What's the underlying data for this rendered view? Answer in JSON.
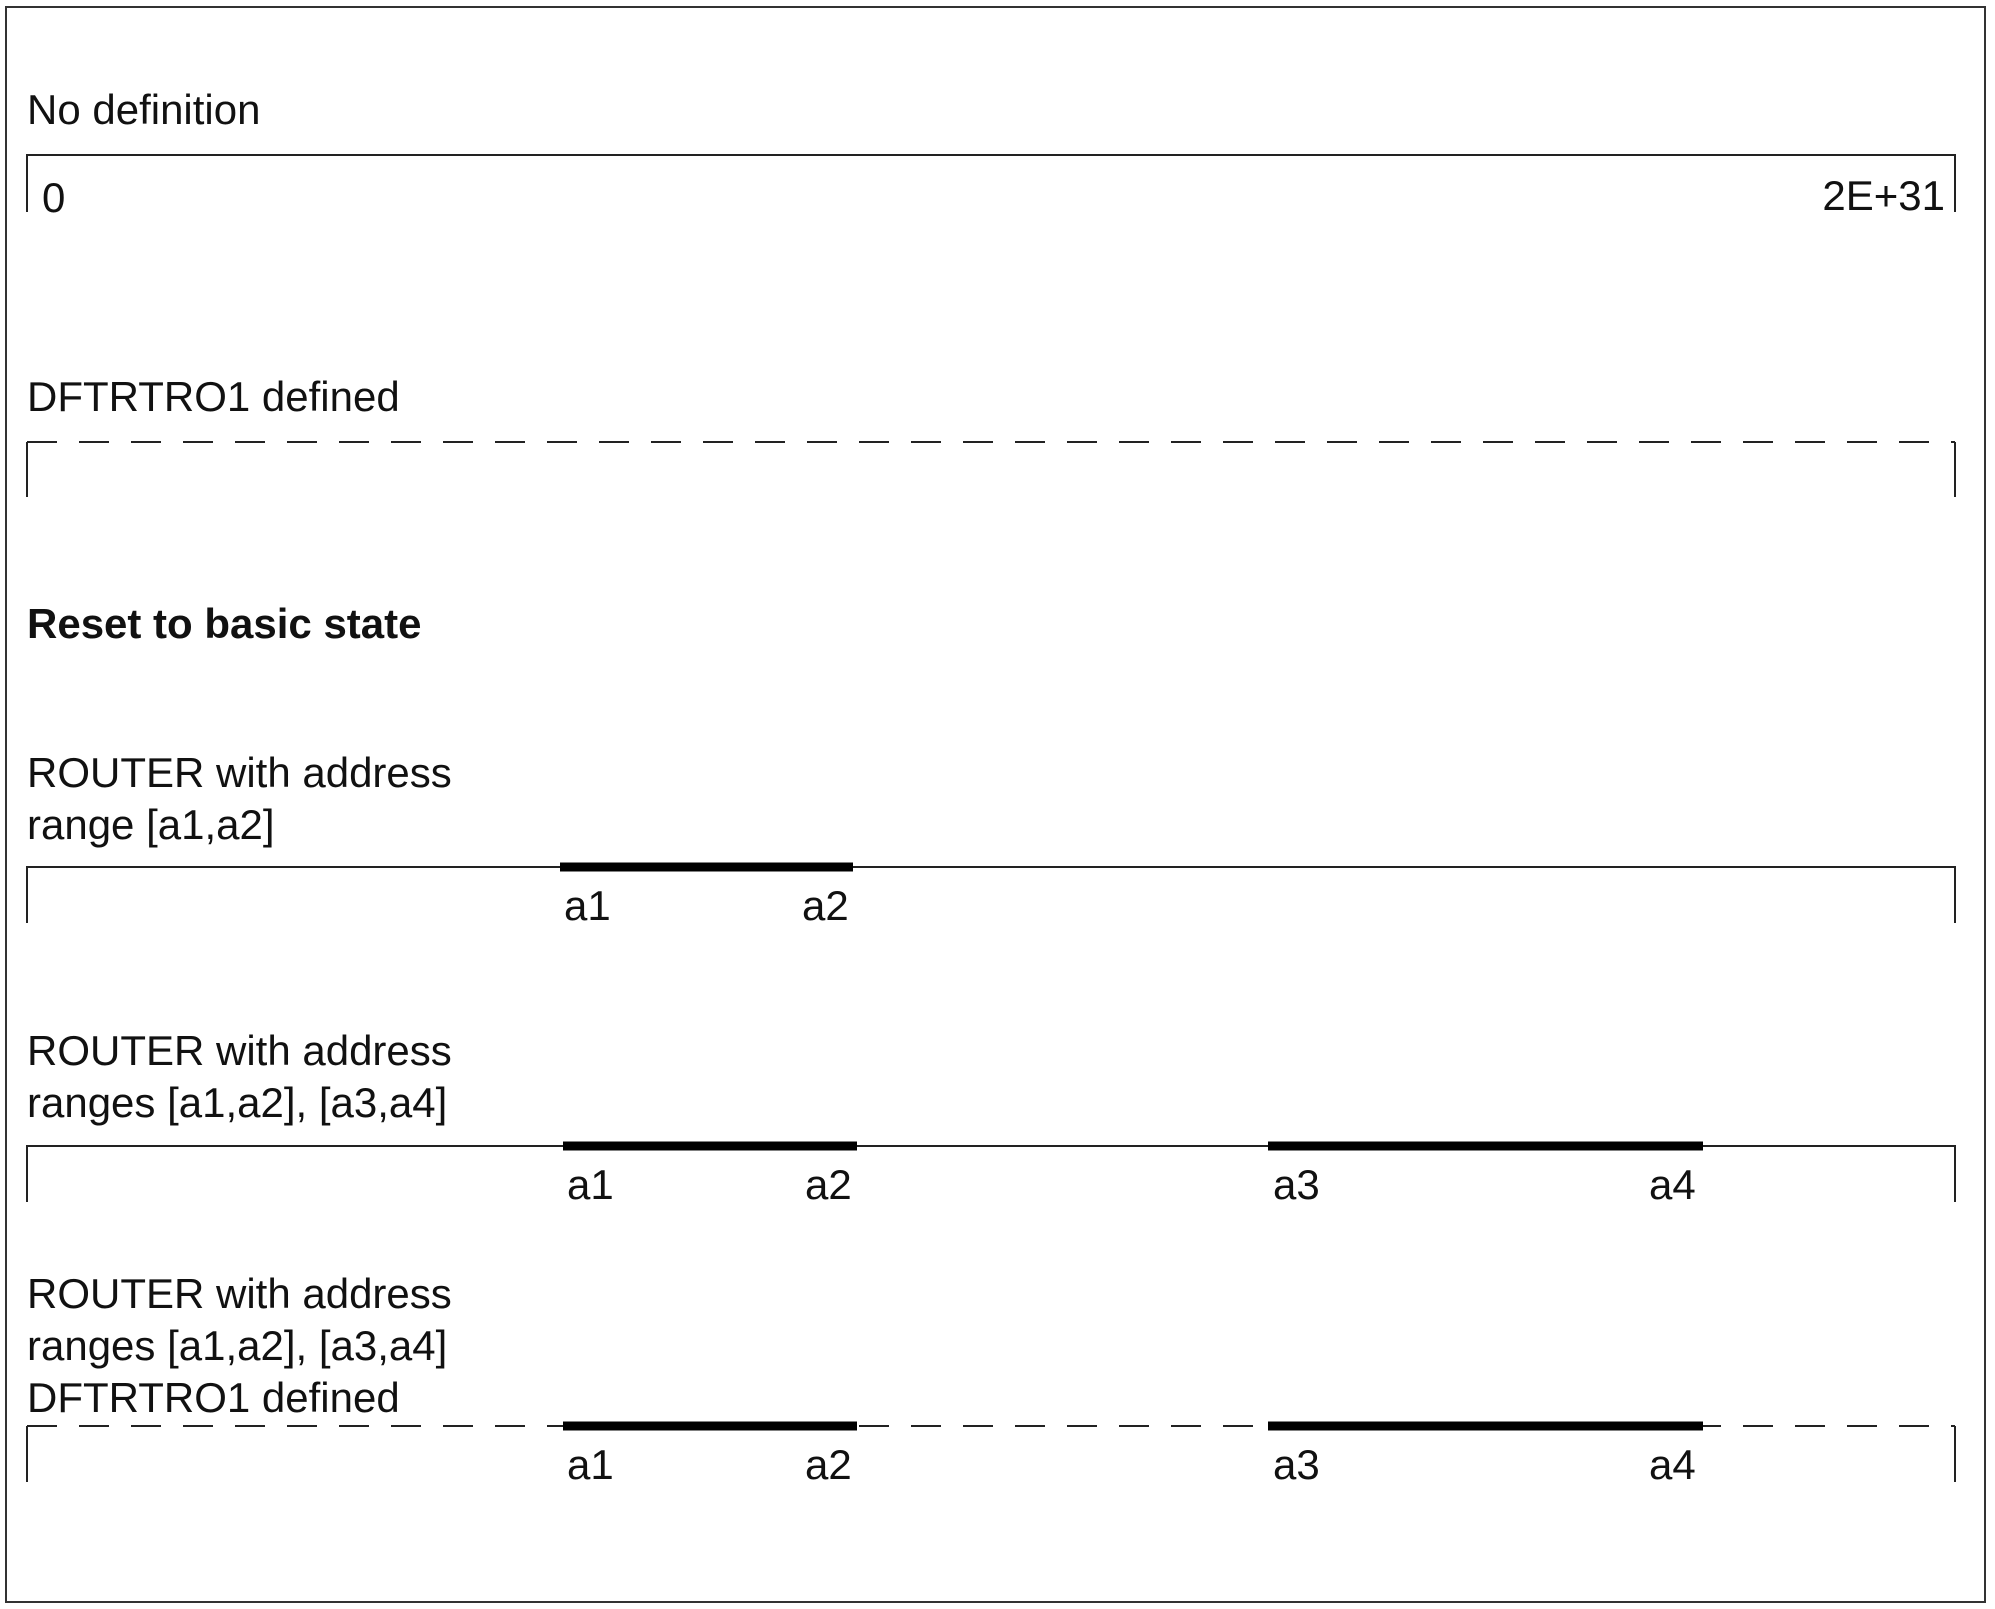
{
  "diagram": {
    "rows": [
      {
        "id": "no-definition",
        "label_lines": [
          "No definition"
        ],
        "line_style": "solid",
        "end_labels": {
          "left": "0",
          "right": "2E+31"
        },
        "ranges": []
      },
      {
        "id": "dftrtro1-defined",
        "label_lines": [
          "DFTRTRO1 defined"
        ],
        "line_style": "dashed",
        "ranges": []
      },
      {
        "id": "router-one-range",
        "label_lines": [
          "ROUTER with address",
          "range [a1,a2]"
        ],
        "line_style": "solid",
        "ranges": [
          {
            "start_label": "a1",
            "end_label": "a2"
          }
        ]
      },
      {
        "id": "router-two-ranges",
        "label_lines": [
          "ROUTER with address",
          "ranges [a1,a2], [a3,a4]"
        ],
        "line_style": "solid",
        "ranges": [
          {
            "start_label": "a1",
            "end_label": "a2"
          },
          {
            "start_label": "a3",
            "end_label": "a4"
          }
        ]
      },
      {
        "id": "router-two-ranges-dftrtro1",
        "label_lines": [
          "ROUTER with address",
          "ranges [a1,a2], [a3,a4]",
          "DFTRTRO1 defined"
        ],
        "line_style": "dashed",
        "ranges": [
          {
            "start_label": "a1",
            "end_label": "a2"
          },
          {
            "start_label": "a3",
            "end_label": "a4"
          }
        ]
      }
    ],
    "heading": "Reset to basic state",
    "colors": {
      "line": "#222222",
      "range_bar": "#000000",
      "text": "#111111"
    }
  }
}
